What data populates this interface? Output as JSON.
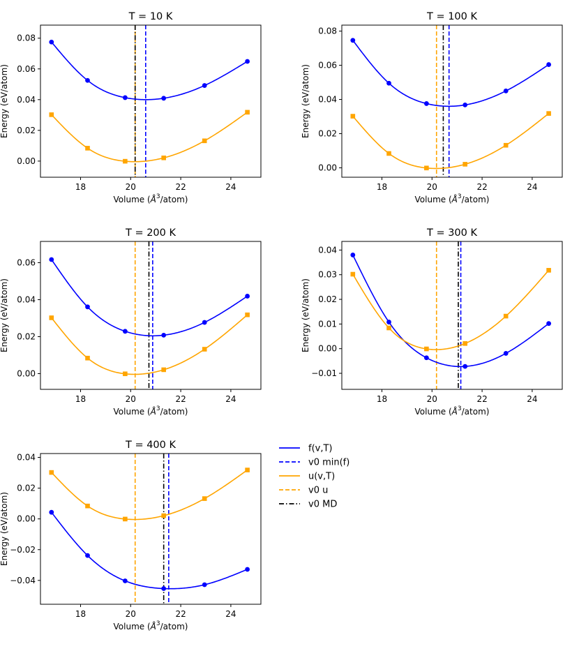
{
  "chart_data": [
    {
      "type": "line",
      "title": "T = 10 K",
      "xlabel": "Volume ($\\AA^3$/atom)",
      "ylabel": "Energy (eV/atom)",
      "xlim": [
        16.4,
        25.2
      ],
      "ylim": [
        -0.0105,
        0.0885
      ],
      "xticks": [
        18,
        20,
        22,
        24
      ],
      "yticks": [
        0.0,
        0.02,
        0.04,
        0.06,
        0.08
      ],
      "ytick_labels": [
        "0.00",
        "0.02",
        "0.04",
        "0.06",
        "0.08"
      ],
      "grid": false,
      "series": [
        {
          "name": "f(v,T)",
          "role": "curve",
          "color": "#0000ff",
          "marker": "circle",
          "x": [
            16.84,
            18.28,
            19.78,
            21.32,
            22.95,
            24.66
          ],
          "y": [
            0.0775,
            0.0525,
            0.0413,
            0.0409,
            0.0492,
            0.0649
          ]
        },
        {
          "name": "u(v,T)",
          "role": "curve",
          "color": "#ffa500",
          "marker": "square",
          "x": [
            16.84,
            18.28,
            19.78,
            21.32,
            22.95,
            24.66
          ],
          "y": [
            0.0302,
            0.0084,
            -0.0001,
            0.0021,
            0.0132,
            0.0318
          ]
        }
      ],
      "vlines": [
        {
          "name": "v0 min(f)",
          "x": 20.6,
          "color": "#0000ff",
          "style": "dashed"
        },
        {
          "name": "v0 u",
          "x": 20.18,
          "color": "#ffa500",
          "style": "dashed"
        },
        {
          "name": "v0 MD",
          "x": 20.18,
          "color": "#000000",
          "style": "dashdot"
        }
      ]
    },
    {
      "type": "line",
      "title": "T = 100 K",
      "xlabel": "Volume ($\\AA^3$/atom)",
      "ylabel": "Energy (eV/atom)",
      "xlim": [
        16.4,
        25.2
      ],
      "ylim": [
        -0.0055,
        0.0835
      ],
      "xticks": [
        18,
        20,
        22,
        24
      ],
      "yticks": [
        0.0,
        0.02,
        0.04,
        0.06,
        0.08
      ],
      "ytick_labels": [
        "0.00",
        "0.02",
        "0.04",
        "0.06",
        "0.08"
      ],
      "grid": false,
      "series": [
        {
          "name": "f(v,T)",
          "role": "curve",
          "color": "#0000ff",
          "marker": "circle",
          "x": [
            16.84,
            18.28,
            19.78,
            21.32,
            22.95,
            24.66
          ],
          "y": [
            0.0746,
            0.0495,
            0.0376,
            0.0368,
            0.045,
            0.0604
          ]
        },
        {
          "name": "u(v,T)",
          "role": "curve",
          "color": "#ffa500",
          "marker": "square",
          "x": [
            16.84,
            18.28,
            19.78,
            21.32,
            22.95,
            24.66
          ],
          "y": [
            0.0302,
            0.0084,
            -0.0001,
            0.0021,
            0.0132,
            0.0318
          ]
        }
      ],
      "vlines": [
        {
          "name": "v0 min(f)",
          "x": 20.68,
          "color": "#0000ff",
          "style": "dashed"
        },
        {
          "name": "v0 u",
          "x": 20.18,
          "color": "#ffa500",
          "style": "dashed"
        },
        {
          "name": "v0 MD",
          "x": 20.45,
          "color": "#000000",
          "style": "dashdot"
        }
      ]
    },
    {
      "type": "line",
      "title": "T = 200 K",
      "xlabel": "Volume ($\\AA^3$/atom)",
      "ylabel": "Energy (eV/atom)",
      "xlim": [
        16.4,
        25.2
      ],
      "ylim": [
        -0.0085,
        0.0715
      ],
      "xticks": [
        18,
        20,
        22,
        24
      ],
      "yticks": [
        0.0,
        0.02,
        0.04,
        0.06
      ],
      "ytick_labels": [
        "0.00",
        "0.02",
        "0.04",
        "0.06"
      ],
      "grid": false,
      "series": [
        {
          "name": "f(v,T)",
          "role": "curve",
          "color": "#0000ff",
          "marker": "circle",
          "x": [
            16.84,
            18.28,
            19.78,
            21.32,
            22.95,
            24.66
          ],
          "y": [
            0.0617,
            0.0361,
            0.0229,
            0.0208,
            0.0277,
            0.0419
          ]
        },
        {
          "name": "u(v,T)",
          "role": "curve",
          "color": "#ffa500",
          "marker": "square",
          "x": [
            16.84,
            18.28,
            19.78,
            21.32,
            22.95,
            24.66
          ],
          "y": [
            0.0302,
            0.0084,
            -0.0001,
            0.0021,
            0.0132,
            0.0318
          ]
        }
      ],
      "vlines": [
        {
          "name": "v0 min(f)",
          "x": 20.88,
          "color": "#0000ff",
          "style": "dashed"
        },
        {
          "name": "v0 u",
          "x": 20.18,
          "color": "#ffa500",
          "style": "dashed"
        },
        {
          "name": "v0 MD",
          "x": 20.73,
          "color": "#000000",
          "style": "dashdot"
        }
      ]
    },
    {
      "type": "line",
      "title": "T = 300 K",
      "xlabel": "Volume ($\\AA^3$/atom)",
      "ylabel": "Energy (eV/atom)",
      "xlim": [
        16.4,
        25.2
      ],
      "ylim": [
        -0.0165,
        0.0435
      ],
      "xticks": [
        18,
        20,
        22,
        24
      ],
      "yticks": [
        -0.01,
        0.0,
        0.01,
        0.02,
        0.03,
        0.04
      ],
      "ytick_labels": [
        "−0.01",
        "0.00",
        "0.01",
        "0.02",
        "0.03",
        "0.04"
      ],
      "grid": false,
      "series": [
        {
          "name": "f(v,T)",
          "role": "curve",
          "color": "#0000ff",
          "marker": "circle",
          "x": [
            16.84,
            18.28,
            19.78,
            21.32,
            22.95,
            24.66
          ],
          "y": [
            0.038,
            0.0108,
            -0.0037,
            -0.0072,
            -0.0019,
            0.0102
          ]
        },
        {
          "name": "u(v,T)",
          "role": "curve",
          "color": "#ffa500",
          "marker": "square",
          "x": [
            16.84,
            18.28,
            19.78,
            21.32,
            22.95,
            24.66
          ],
          "y": [
            0.0302,
            0.0084,
            -0.0001,
            0.0021,
            0.0132,
            0.0318
          ]
        }
      ],
      "vlines": [
        {
          "name": "v0 min(f)",
          "x": 21.15,
          "color": "#0000ff",
          "style": "dashed"
        },
        {
          "name": "v0 u",
          "x": 20.18,
          "color": "#ffa500",
          "style": "dashed"
        },
        {
          "name": "v0 MD",
          "x": 21.05,
          "color": "#000000",
          "style": "dashdot"
        }
      ]
    },
    {
      "type": "line",
      "title": "T = 400 K",
      "xlabel": "Volume ($\\AA^3$/atom)",
      "ylabel": "Energy (eV/atom)",
      "xlim": [
        16.4,
        25.2
      ],
      "ylim": [
        -0.0555,
        0.0425
      ],
      "xticks": [
        18,
        20,
        22,
        24
      ],
      "yticks": [
        -0.04,
        -0.02,
        0.0,
        0.02,
        0.04
      ],
      "ytick_labels": [
        "−0.04",
        "−0.02",
        "0.00",
        "0.02",
        "0.04"
      ],
      "grid": false,
      "series": [
        {
          "name": "f(v,T)",
          "role": "curve",
          "color": "#0000ff",
          "marker": "circle",
          "x": [
            16.84,
            18.28,
            19.78,
            21.32,
            22.95,
            24.66
          ],
          "y": [
            0.0043,
            -0.0238,
            -0.0403,
            -0.0453,
            -0.0428,
            -0.0328
          ]
        },
        {
          "name": "u(v,T)",
          "role": "curve",
          "color": "#ffa500",
          "marker": "square",
          "x": [
            16.84,
            18.28,
            19.78,
            21.32,
            22.95,
            24.66
          ],
          "y": [
            0.0302,
            0.0084,
            -0.0001,
            0.0021,
            0.0132,
            0.0318
          ]
        }
      ],
      "vlines": [
        {
          "name": "v0 min(f)",
          "x": 21.52,
          "color": "#0000ff",
          "style": "dashed"
        },
        {
          "name": "v0 u",
          "x": 20.18,
          "color": "#ffa500",
          "style": "dashed"
        },
        {
          "name": "v0 MD",
          "x": 21.32,
          "color": "#000000",
          "style": "dashdot"
        }
      ]
    }
  ],
  "legend": {
    "placement": "right of bottom-left panel",
    "entries": [
      {
        "label": "f(v,T)",
        "color": "#0000ff",
        "style": "solid"
      },
      {
        "label": "v0 min(f)",
        "color": "#0000ff",
        "style": "dashed"
      },
      {
        "label": "u(v,T)",
        "color": "#ffa500",
        "style": "solid"
      },
      {
        "label": "v0 u",
        "color": "#ffa500",
        "style": "dashed"
      },
      {
        "label": "v0 MD",
        "color": "#000000",
        "style": "dashdot"
      }
    ]
  }
}
